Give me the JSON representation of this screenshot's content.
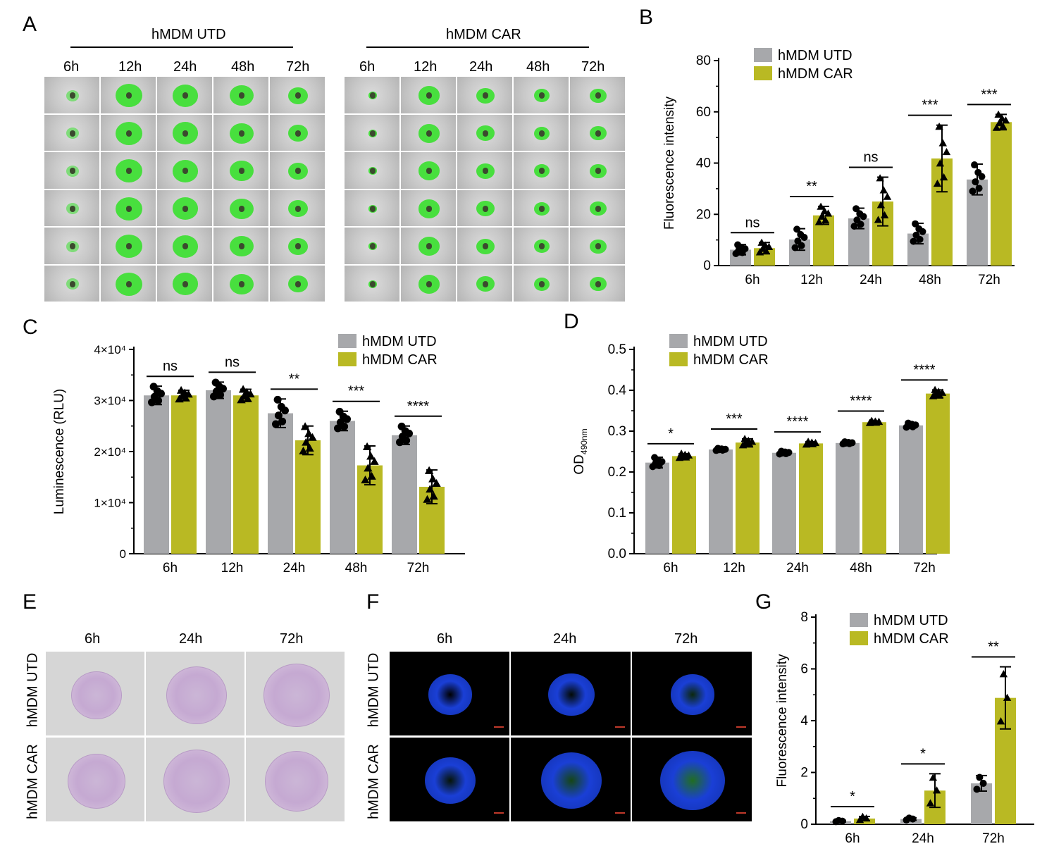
{
  "panels": {
    "A": {
      "letter": "A",
      "groups": [
        {
          "title": "hMDM UTD",
          "times": [
            "6h",
            "12h",
            "24h",
            "48h",
            "72h"
          ]
        },
        {
          "title": "hMDM CAR",
          "times": [
            "6h",
            "12h",
            "24h",
            "48h",
            "72h"
          ]
        }
      ]
    },
    "B": {
      "letter": "B"
    },
    "C": {
      "letter": "C"
    },
    "D": {
      "letter": "D"
    },
    "E": {
      "letter": "E",
      "times": [
        "6h",
        "24h",
        "72h"
      ],
      "rows": [
        "hMDM UTD",
        "hMDM CAR"
      ]
    },
    "F": {
      "letter": "F",
      "times": [
        "6h",
        "24h",
        "72h"
      ],
      "rows": [
        "hMDM UTD",
        "hMDM CAR"
      ]
    },
    "G": {
      "letter": "G"
    }
  },
  "colors": {
    "utd": "#a7a8ab",
    "car": "#b9b923",
    "green": "#39e02e",
    "nucleus_blue": "#1a3fd6"
  },
  "chart_data": [
    {
      "id": "B",
      "type": "bar",
      "categories": [
        "6h",
        "12h",
        "24h",
        "48h",
        "72h"
      ],
      "series": [
        {
          "name": "hMDM UTD",
          "values": [
            6.2,
            10.2,
            18.4,
            12.5,
            33.6
          ],
          "err": [
            2.0,
            4.2,
            4.0,
            4.0,
            6.0
          ]
        },
        {
          "name": "hMDM CAR",
          "values": [
            6.8,
            19.6,
            25.0,
            41.8,
            56.0
          ],
          "err": [
            2.2,
            3.5,
            9.5,
            13.0,
            3.0
          ]
        }
      ],
      "significance": [
        "ns",
        "**",
        "ns",
        "***",
        "***"
      ],
      "ylabel": "Fluorescence intensity",
      "ylim": [
        0,
        80
      ],
      "yticks": [
        0,
        20,
        40,
        60,
        80
      ],
      "ytick_labels": [
        "0",
        "20",
        "40",
        "60",
        "80"
      ],
      "legend": "top-left"
    },
    {
      "id": "C",
      "type": "bar",
      "categories": [
        "6h",
        "12h",
        "24h",
        "48h",
        "72h"
      ],
      "series": [
        {
          "name": "hMDM UTD",
          "values": [
            31000,
            32000,
            27500,
            26000,
            23200
          ],
          "err": [
            1800,
            1600,
            2800,
            1900,
            1800
          ]
        },
        {
          "name": "hMDM CAR",
          "values": [
            31000,
            31000,
            22200,
            17300,
            13100
          ],
          "err": [
            1000,
            1200,
            2800,
            3800,
            3300
          ]
        }
      ],
      "significance": [
        "ns",
        "ns",
        "**",
        "***",
        "****"
      ],
      "ylabel": "Luminescence (RLU)",
      "ylim": [
        0,
        40000
      ],
      "yticks": [
        0,
        10000,
        20000,
        30000,
        40000
      ],
      "ytick_labels": [
        "0",
        "1×10⁴",
        "2×10⁴",
        "3×10⁴",
        "4×10⁴"
      ],
      "legend": "top-right"
    },
    {
      "id": "D",
      "type": "bar",
      "categories": [
        "6h",
        "12h",
        "24h",
        "48h",
        "72h"
      ],
      "series": [
        {
          "name": "hMDM UTD",
          "values": [
            0.223,
            0.255,
            0.247,
            0.271,
            0.314
          ],
          "err": [
            0.013,
            0.003,
            0.004,
            0.003,
            0.006
          ]
        },
        {
          "name": "hMDM CAR",
          "values": [
            0.239,
            0.272,
            0.27,
            0.322,
            0.392
          ],
          "err": [
            0.006,
            0.009,
            0.004,
            0.003,
            0.009
          ]
        }
      ],
      "significance": [
        "*",
        "***",
        "****",
        "****",
        "****"
      ],
      "ylabel": "OD",
      "ylabel_sub": "490nm",
      "ylim": [
        0,
        0.5
      ],
      "yticks": [
        0,
        0.1,
        0.2,
        0.3,
        0.4,
        0.5
      ],
      "ytick_labels": [
        "0.0",
        "0.1",
        "0.2",
        "0.3",
        "0.4",
        "0.5"
      ],
      "legend": "top-left"
    },
    {
      "id": "G",
      "type": "bar",
      "categories": [
        "6h",
        "24h",
        "72h"
      ],
      "series": [
        {
          "name": "hMDM UTD",
          "values": [
            0.12,
            0.2,
            1.58
          ],
          "err": [
            0.03,
            0.05,
            0.3
          ]
        },
        {
          "name": "hMDM CAR",
          "values": [
            0.22,
            1.3,
            4.88
          ],
          "err": [
            0.08,
            0.65,
            1.2
          ]
        }
      ],
      "significance": [
        "*",
        "*",
        "**"
      ],
      "ylabel": "Fluorescence intensity",
      "ylim": [
        0,
        8
      ],
      "yticks": [
        0,
        2,
        4,
        6,
        8
      ],
      "ytick_labels": [
        "0",
        "2",
        "4",
        "6",
        "8"
      ],
      "legend": "top-right"
    }
  ]
}
